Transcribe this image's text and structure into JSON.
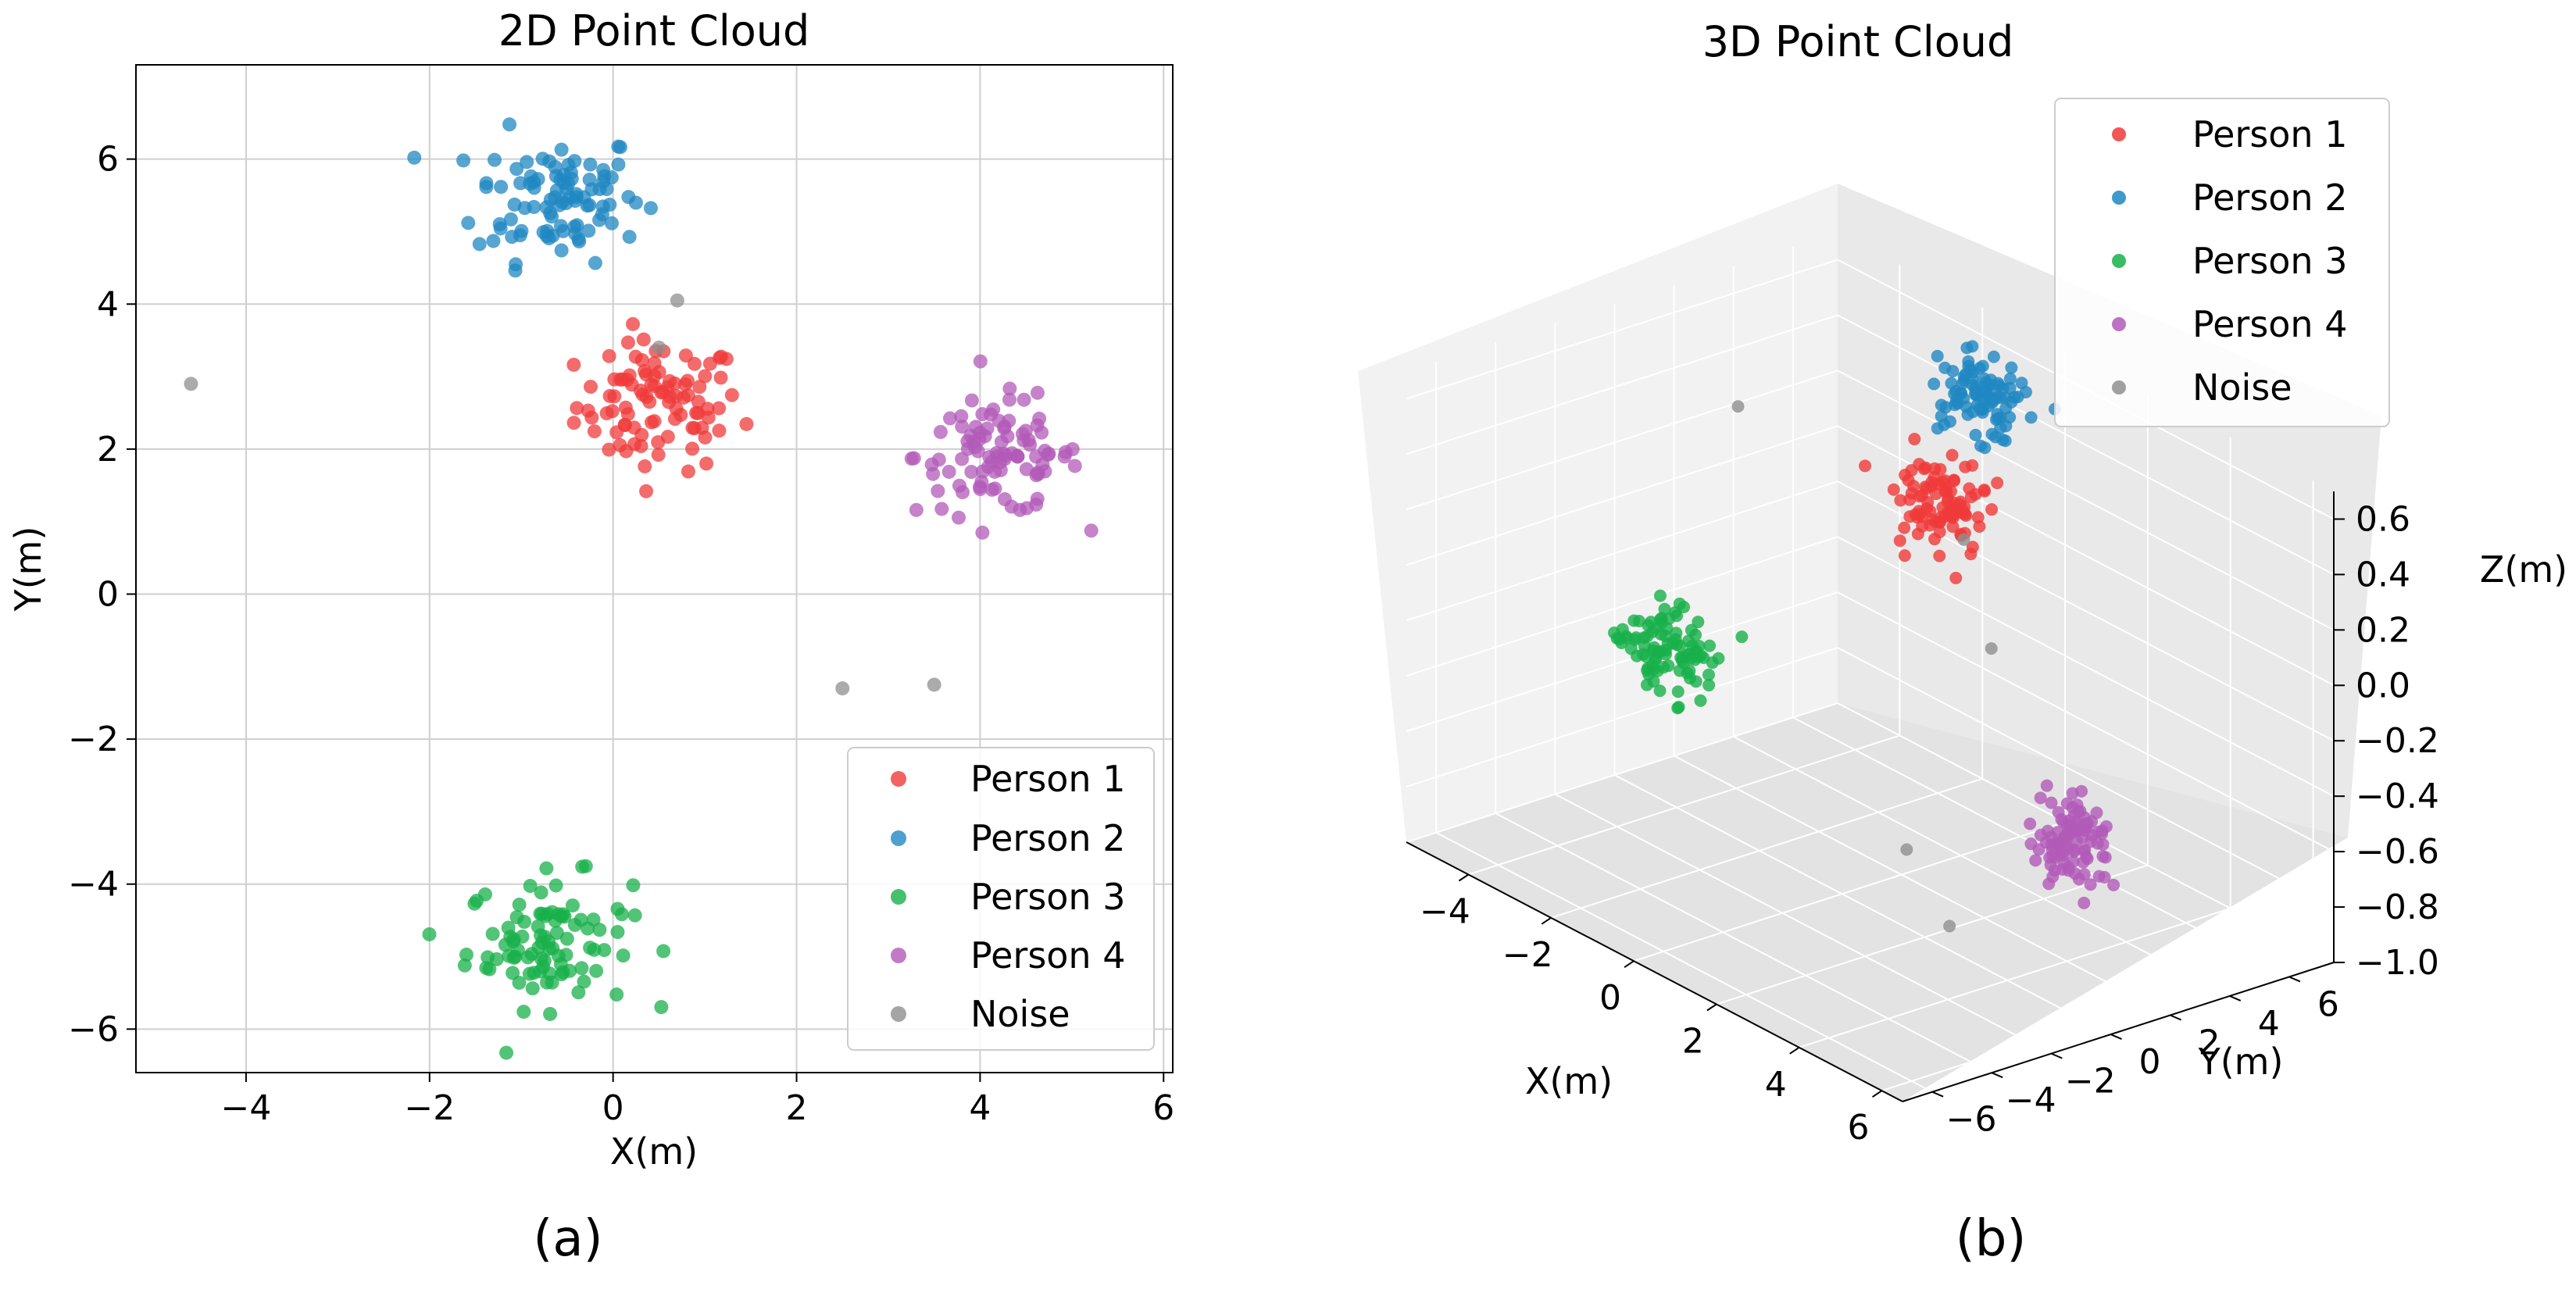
{
  "figure": {
    "caption_a": "(a)",
    "caption_b": "(b)"
  },
  "chart_data": [
    {
      "type": "scatter",
      "title": "2D Point Cloud",
      "xlabel": "X(m)",
      "ylabel": "Y(m)",
      "xlim": [
        -5.2,
        6.1
      ],
      "ylim": [
        -6.6,
        7.3
      ],
      "xticks": [
        -4,
        -2,
        0,
        2,
        4,
        6
      ],
      "yticks": [
        -6,
        -4,
        -2,
        0,
        2,
        4,
        6
      ],
      "grid": true,
      "legend_position": "bottom-right",
      "series": [
        {
          "name": "Person 1",
          "color": "#f03a3a",
          "center": [
            0.5,
            2.6
          ],
          "spread": [
            0.45,
            0.45
          ],
          "count": 95
        },
        {
          "name": "Person 2",
          "color": "#1f87c2",
          "center": [
            -0.6,
            5.5
          ],
          "spread": [
            0.45,
            0.45
          ],
          "count": 95
        },
        {
          "name": "Person 3",
          "color": "#18b04a",
          "center": [
            -0.7,
            -4.8
          ],
          "spread": [
            0.45,
            0.45
          ],
          "count": 95
        },
        {
          "name": "Person 4",
          "color": "#b15ab8",
          "center": [
            4.2,
            1.9
          ],
          "spread": [
            0.45,
            0.4
          ],
          "count": 95
        },
        {
          "name": "Noise",
          "color": "#8f8f8f",
          "points": [
            [
              -4.6,
              2.9
            ],
            [
              2.5,
              -1.3
            ],
            [
              3.5,
              -1.25
            ],
            [
              0.7,
              4.05
            ],
            [
              0.5,
              3.4
            ]
          ]
        }
      ]
    },
    {
      "type": "scatter3d",
      "title": "3D Point Cloud",
      "xlabel": "X(m)",
      "ylabel": "Y(m)",
      "zlabel": "Z(m)",
      "xlim": [
        -5.5,
        6.5
      ],
      "ylim": [
        -7,
        7.5
      ],
      "zlim": [
        -1.0,
        0.7
      ],
      "xticks": [
        -4,
        -2,
        0,
        2,
        4,
        6
      ],
      "yticks": [
        -6,
        -4,
        -2,
        0,
        2,
        4,
        6
      ],
      "zticks": [
        -1.0,
        -0.8,
        -0.6,
        -0.4,
        -0.2,
        0.0,
        0.2,
        0.4,
        0.6
      ],
      "grid": true,
      "legend_position": "top-right",
      "series": [
        {
          "name": "Person 1",
          "color": "#f03a3a",
          "center": [
            0.5,
            2.6,
            0.35
          ],
          "spread": [
            0.45,
            0.45,
            0.08
          ],
          "count": 95
        },
        {
          "name": "Person 2",
          "color": "#1f87c2",
          "center": [
            -0.6,
            5.5,
            0.55
          ],
          "spread": [
            0.45,
            0.45,
            0.08
          ],
          "count": 95
        },
        {
          "name": "Person 3",
          "color": "#18b04a",
          "center": [
            -0.7,
            -4.8,
            0.0
          ],
          "spread": [
            0.45,
            0.45,
            0.08
          ],
          "count": 95
        },
        {
          "name": "Person 4",
          "color": "#b15ab8",
          "center": [
            4.2,
            1.9,
            -0.55
          ],
          "spread": [
            0.45,
            0.4,
            0.08
          ],
          "count": 95
        },
        {
          "name": "Noise",
          "color": "#8f8f8f",
          "points": [
            [
              -4.6,
              2.9,
              0.3
            ],
            [
              2.5,
              -1.3,
              -0.6
            ],
            [
              3.5,
              -1.25,
              -0.8
            ],
            [
              0.7,
              4.05,
              -0.2
            ],
            [
              0.5,
              3.4,
              0.2
            ]
          ]
        }
      ]
    }
  ]
}
